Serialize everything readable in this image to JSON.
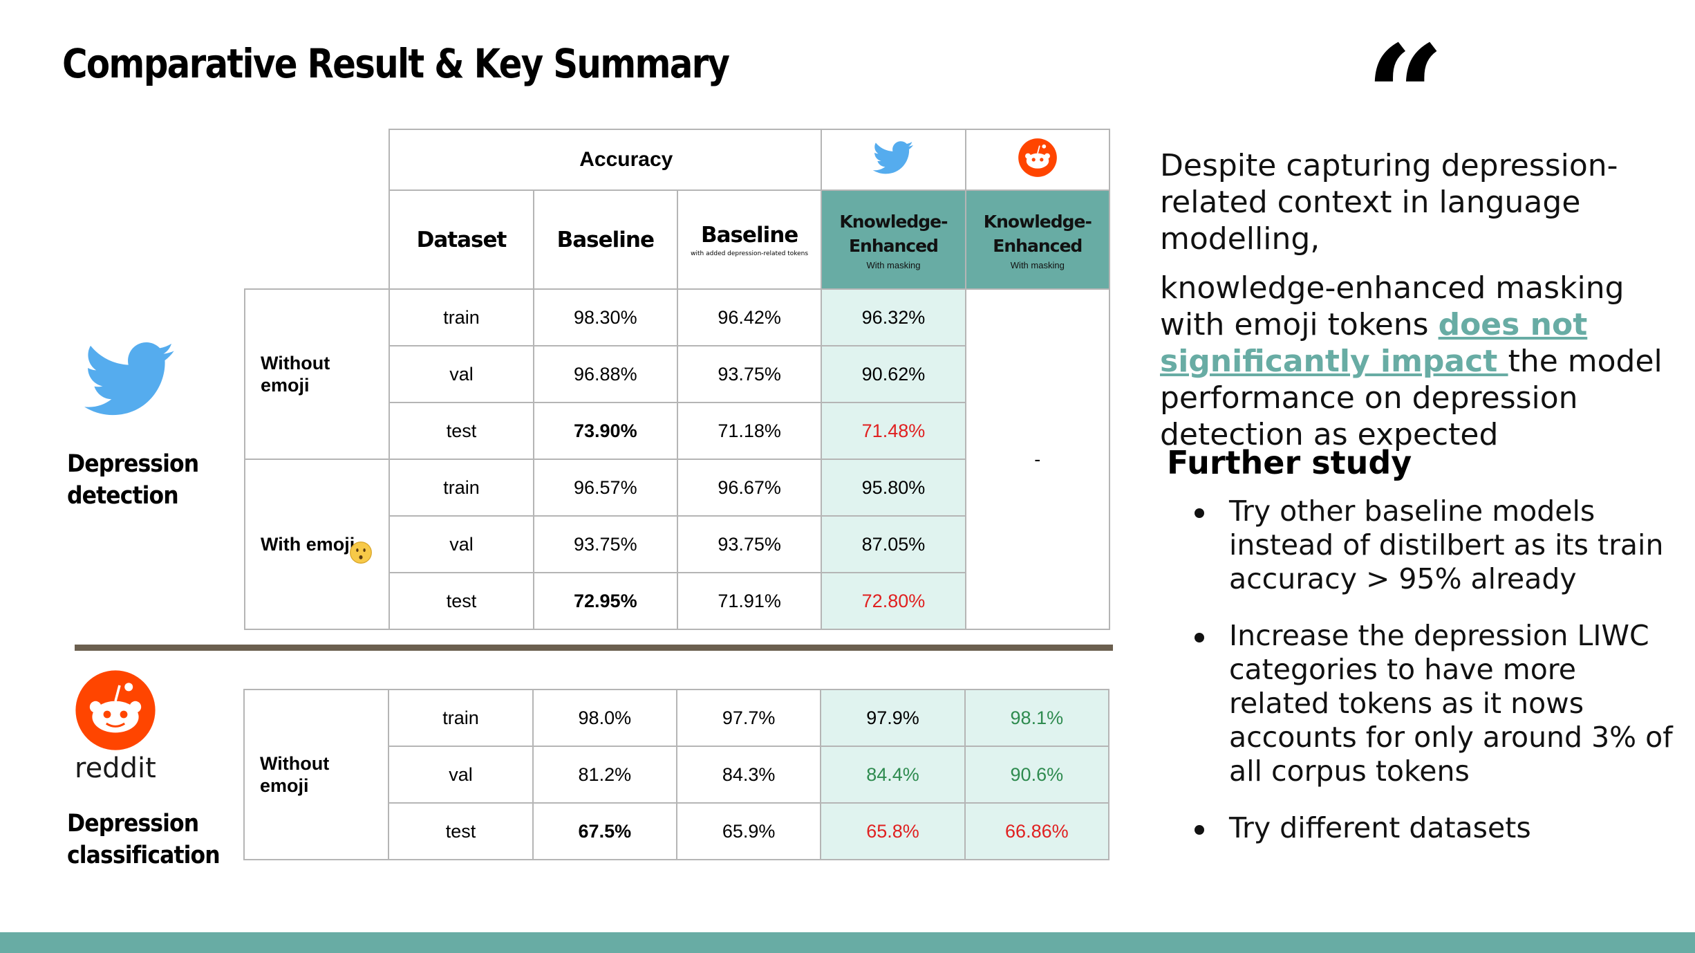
{
  "title": "Comparative Result & Key Summary",
  "quote_mark": "“",
  "colors": {
    "accent": "#68aca4",
    "ke_cell": "#e0f3ef",
    "red": "#e02020",
    "green": "#2e8b4f",
    "twitter": "#55acee",
    "reddit": "#ff4500",
    "divider": "#6b5f4f"
  },
  "twitter_section": {
    "label_line1": "Depression",
    "label_line2": "detection",
    "accuracy_header": "Accuracy",
    "columns": {
      "dataset": "Dataset",
      "baseline": "Baseline",
      "baseline2": "Baseline",
      "baseline2_sub": "with added depression-related tokens",
      "ke1_line1": "Knowledge-",
      "ke1_line2": "Enhanced",
      "ke1_sub": "With masking",
      "ke2_line1": "Knowledge-",
      "ke2_line2": "Enhanced",
      "ke2_sub": "With masking"
    },
    "group_without_line1": "Without",
    "group_without_line2": "emoji",
    "group_with": "With emoji",
    "reddit_dash": "-",
    "rows": [
      {
        "split": "train",
        "baseline": "98.30%",
        "baseline2": "96.42%",
        "ke": "96.32%"
      },
      {
        "split": "val",
        "baseline": "96.88%",
        "baseline2": "93.75%",
        "ke": "90.62%"
      },
      {
        "split": "test",
        "baseline": "73.90%",
        "baseline2": "71.18%",
        "ke": "71.48%"
      },
      {
        "split": "train",
        "baseline": "96.57%",
        "baseline2": "96.67%",
        "ke": "95.80%"
      },
      {
        "split": "val",
        "baseline": "93.75%",
        "baseline2": "93.75%",
        "ke": "87.05%"
      },
      {
        "split": "test",
        "baseline": "72.95%",
        "baseline2": "71.91%",
        "ke": "72.80%"
      }
    ]
  },
  "reddit_section": {
    "logo_text": "reddit",
    "label_line1": "Depression",
    "label_line2": "classification",
    "group_without_line1": "Without",
    "group_without_line2": "emoji",
    "rows": [
      {
        "split": "train",
        "baseline": "98.0%",
        "baseline2": "97.7%",
        "ke1": "97.9%",
        "ke2": "98.1%"
      },
      {
        "split": "val",
        "baseline": "81.2%",
        "baseline2": "84.3%",
        "ke1": "84.4%",
        "ke2": "90.6%"
      },
      {
        "split": "test",
        "baseline": "67.5%",
        "baseline2": "65.9%",
        "ke1": "65.8%",
        "ke2": "66.86%"
      }
    ]
  },
  "summary": {
    "para1": "Despite capturing depression-related context in language modelling,",
    "para2_before": "knowledge-enhanced masking with emoji tokens ",
    "para2_link": "does not significantly impact ",
    "para2_after": "the model performance on depression detection as expected"
  },
  "further_study": {
    "heading": "Further study",
    "items": [
      "Try other baseline models instead of distilbert as its train accuracy > 95% already",
      "Increase the depression LIWC categories to have more related tokens as it nows accounts for only around 3% of all corpus tokens",
      "Try different datasets"
    ]
  }
}
